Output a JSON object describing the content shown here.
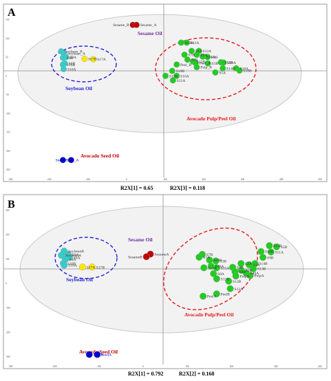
{
  "panels": [
    {
      "letter": "A",
      "footer": [
        {
          "text": "R2X[1] = 0.65"
        },
        {
          "text": "R2X[3] = 0.118"
        }
      ],
      "groups": [
        {
          "label": "Sesame Oil",
          "color": "#7030a0"
        },
        {
          "label": "Soybean Oil",
          "color": "#1f1fd6"
        },
        {
          "label": "Avocado Pulp/Peel Oil",
          "color": "#e8161b"
        },
        {
          "label": "Avocado Seed Oil",
          "color": "#c00000"
        }
      ],
      "x_tick_labels": [
        "-300",
        "-200",
        "-100",
        "0",
        "100",
        "200",
        "300",
        "400",
        "500"
      ],
      "y_tick_labels": [
        "150",
        "100",
        "50",
        "0",
        "-50",
        "-100",
        "-150",
        "-200",
        "-250"
      ]
    },
    {
      "letter": "B",
      "footer": [
        {
          "text": "R2X[1] = 0.792"
        },
        {
          "text": "R2X[2] = 0.168"
        }
      ],
      "groups": [
        {
          "label": "Sesame Oil",
          "color": "#7030a0"
        },
        {
          "label": "Soybean Oil",
          "color": "#1f1fd6"
        },
        {
          "label": "Avocado Pulp/Peel Oil",
          "color": "#e8161b"
        },
        {
          "label": "Avocado Seed Oil",
          "color": "#c00000"
        }
      ],
      "x_tick_labels": [
        "-300",
        "-200",
        "-100",
        "0",
        "100",
        "200",
        "300",
        "400"
      ],
      "y_tick_labels": [
        "300",
        "200",
        "100",
        "0",
        "-100",
        "-200",
        "-300"
      ]
    }
  ],
  "chart_data": [
    {
      "type": "scatter",
      "title": "A",
      "xlabel": "R2X[1] = 0.65",
      "ylabel": "R2X[3] = 0.118",
      "xlim": [
        -330,
        540
      ],
      "ylim": [
        -290,
        180
      ],
      "grid": false,
      "points": [
        {
          "label": "Sesame_B",
          "x": 18,
          "y": 125,
          "group": "sesame"
        },
        {
          "label": "Sesame_A",
          "x": 28,
          "y": 125,
          "group": "sesame"
        },
        {
          "label": "Soybean_B",
          "x": -175,
          "y": 55,
          "group": "soybean"
        },
        {
          "label": "Soybean_A",
          "x": -168,
          "y": 50,
          "group": "soybean"
        },
        {
          "label": "S4B",
          "x": -170,
          "y": 38,
          "group": "soybean"
        },
        {
          "label": "S9A",
          "x": -162,
          "y": 40,
          "group": "soybean"
        },
        {
          "label": "S16B",
          "x": -170,
          "y": 20,
          "group": "soybean"
        },
        {
          "label": "S6B",
          "x": -165,
          "y": 23,
          "group": "soybean"
        },
        {
          "label": "S16A",
          "x": -168,
          "y": 8,
          "group": "soybean"
        },
        {
          "label": "S17B",
          "x": -112,
          "y": 35,
          "group": "adulterated"
        },
        {
          "label": "S17A",
          "x": -88,
          "y": 34,
          "group": "adulterated"
        },
        {
          "label": "S13B",
          "x": 148,
          "y": 78,
          "group": "pulp"
        },
        {
          "label": "S13A",
          "x": 163,
          "y": 78,
          "group": "pulp"
        },
        {
          "label": "S8A",
          "x": 176,
          "y": 56,
          "group": "pulp"
        },
        {
          "label": "S12A",
          "x": 196,
          "y": 56,
          "group": "pulp"
        },
        {
          "label": "S7B",
          "x": 157,
          "y": 46,
          "group": "pulp"
        },
        {
          "label": "S2A",
          "x": 190,
          "y": 46,
          "group": "pulp"
        },
        {
          "label": "S14A",
          "x": 206,
          "y": 41,
          "group": "pulp"
        },
        {
          "label": "S9B",
          "x": 219,
          "y": 40,
          "group": "pulp"
        },
        {
          "label": "S2B",
          "x": 165,
          "y": 33,
          "group": "pulp"
        },
        {
          "label": "S12B",
          "x": 180,
          "y": 28,
          "group": "pulp"
        },
        {
          "label": "Peel_A",
          "x": 187,
          "y": 24,
          "group": "pulp"
        },
        {
          "label": "S3B",
          "x": 220,
          "y": 23,
          "group": "pulp"
        },
        {
          "label": "S11B",
          "x": 255,
          "y": 26,
          "group": "pulp"
        },
        {
          "label": "S10A",
          "x": 262,
          "y": 25,
          "group": "pulp"
        },
        {
          "label": "Peel_B",
          "x": 136,
          "y": 20,
          "group": "pulp"
        },
        {
          "label": "Pulp_B",
          "x": 190,
          "y": 13,
          "group": "pulp"
        },
        {
          "label": "S14B",
          "x": 260,
          "y": 10,
          "group": "pulp"
        },
        {
          "label": "S18A",
          "x": 296,
          "y": 10,
          "group": "pulp"
        },
        {
          "label": "S10B",
          "x": 124,
          "y": 3,
          "group": "pulp"
        },
        {
          "label": "S5A",
          "x": 240,
          "y": -1,
          "group": "pulp"
        },
        {
          "label": "S18B",
          "x": 305,
          "y": 4,
          "group": "pulp"
        },
        {
          "label": "S15B",
          "x": 106,
          "y": -10,
          "group": "pulp"
        },
        {
          "label": "S10A",
          "x": 136,
          "y": -10,
          "group": "pulp"
        },
        {
          "label": "S15A",
          "x": 126,
          "y": -22,
          "group": "pulp"
        },
        {
          "label": "Seed_A",
          "x": -170,
          "y": -233,
          "group": "seed"
        },
        {
          "label": "Seed_B",
          "x": -148,
          "y": -233,
          "group": "seed"
        }
      ]
    },
    {
      "type": "scatter",
      "title": "B",
      "xlabel": "R2X[1] = 0.792",
      "ylabel": "R2X[2] = 0.168",
      "xlim": [
        -330,
        480
      ],
      "ylim": [
        -400,
        340
      ],
      "grid": false,
      "points": [
        {
          "label": "SesameA",
          "x": 38,
          "y": 87,
          "group": "sesame"
        },
        {
          "label": "SesameB",
          "x": 28,
          "y": 76,
          "group": "sesame"
        },
        {
          "label": "SoybeanB",
          "x": -178,
          "y": 100,
          "group": "soybean"
        },
        {
          "label": "SoybeanA",
          "x": -185,
          "y": 82,
          "group": "soybean"
        },
        {
          "label": "S9A",
          "x": -168,
          "y": 85,
          "group": "soybean"
        },
        {
          "label": "S6A",
          "x": -165,
          "y": 73,
          "group": "soybean"
        },
        {
          "label": "S4A",
          "x": -175,
          "y": 65,
          "group": "soybean"
        },
        {
          "label": "S16B",
          "x": -180,
          "y": 48,
          "group": "soybean"
        },
        {
          "label": "S16A",
          "x": -178,
          "y": 40,
          "group": "soybean"
        },
        {
          "label": "S17A",
          "x": -132,
          "y": 32,
          "group": "adulterated"
        },
        {
          "label": "S17B",
          "x": -108,
          "y": 32,
          "group": "adulterated"
        },
        {
          "label": "S11B",
          "x": 336,
          "y": 123,
          "group": "pulp"
        },
        {
          "label": "S5B",
          "x": 354,
          "y": 118,
          "group": "pulp"
        },
        {
          "label": "S18B",
          "x": 315,
          "y": 98,
          "group": "pulp"
        },
        {
          "label": "S11A",
          "x": 340,
          "y": 96,
          "group": "pulp"
        },
        {
          "label": "S7B",
          "x": 168,
          "y": 86,
          "group": "pulp"
        },
        {
          "label": "S7A",
          "x": 160,
          "y": 74,
          "group": "pulp"
        },
        {
          "label": "S9B",
          "x": 320,
          "y": 73,
          "group": "pulp"
        },
        {
          "label": "S10B",
          "x": 186,
          "y": 62,
          "group": "pulp"
        },
        {
          "label": "S3B",
          "x": 202,
          "y": 58,
          "group": "pulp"
        },
        {
          "label": "S14B",
          "x": 300,
          "y": 47,
          "group": "pulp"
        },
        {
          "label": "S2A",
          "x": 265,
          "y": 47,
          "group": "pulp"
        },
        {
          "label": "S1A",
          "x": 285,
          "y": 42,
          "group": "pulp"
        },
        {
          "label": "S10A",
          "x": 190,
          "y": 36,
          "group": "pulp"
        },
        {
          "label": "S13A",
          "x": 172,
          "y": 29,
          "group": "pulp"
        },
        {
          "label": "S15A",
          "x": 204,
          "y": 29,
          "group": "pulp"
        },
        {
          "label": "S4B",
          "x": 244,
          "y": 31,
          "group": "pulp"
        },
        {
          "label": "S13B",
          "x": 296,
          "y": 25,
          "group": "pulp"
        },
        {
          "label": "S2B",
          "x": 266,
          "y": 18,
          "group": "pulp"
        },
        {
          "label": "S8B",
          "x": 250,
          "y": 12,
          "group": "pulp"
        },
        {
          "label": "S8A",
          "x": 196,
          "y": 4,
          "group": "pulp"
        },
        {
          "label": "S19A",
          "x": 278,
          "y": 6,
          "group": "pulp"
        },
        {
          "label": "PulpA",
          "x": 288,
          "y": -4,
          "group": "pulp"
        },
        {
          "label": "PulpB",
          "x": 252,
          "y": -6,
          "group": "pulp"
        },
        {
          "label": "S13B",
          "x": 204,
          "y": -18,
          "group": "pulp"
        },
        {
          "label": "S12B",
          "x": 234,
          "y": -28,
          "group": "pulp"
        },
        {
          "label": "S12A",
          "x": 238,
          "y": -60,
          "group": "pulp"
        },
        {
          "label": "PeelB",
          "x": 204,
          "y": -82,
          "group": "pulp"
        },
        {
          "label": "PeelA",
          "x": 170,
          "y": -92,
          "group": "pulp"
        },
        {
          "label": "SeedB",
          "x": -115,
          "y": -340,
          "group": "seed"
        },
        {
          "label": "SeedA",
          "x": -95,
          "y": -340,
          "group": "seed"
        }
      ]
    }
  ],
  "colors": {
    "sesame": "#c00000",
    "soybean": "#33cccc",
    "adulterated": "#ffe600",
    "pulp": "#22cc22",
    "seed": "#0000cc",
    "outline": "#999999"
  }
}
